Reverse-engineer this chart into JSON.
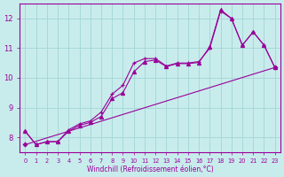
{
  "xlabel": "Windchill (Refroidissement éolien,°C)",
  "xlim": [
    -0.5,
    23.5
  ],
  "ylim": [
    7.5,
    12.5
  ],
  "xticks": [
    0,
    1,
    2,
    3,
    4,
    5,
    6,
    7,
    8,
    9,
    10,
    11,
    12,
    13,
    14,
    15,
    16,
    17,
    18,
    19,
    20,
    21,
    22,
    23
  ],
  "yticks": [
    8,
    9,
    10,
    11,
    12
  ],
  "bg_color": "#c8ecec",
  "line_color": "#990099",
  "grid_color": "#a8d8d8",
  "line1_x": [
    0,
    1,
    2,
    3,
    4,
    5,
    6,
    7,
    8,
    9,
    10,
    11,
    12,
    13,
    14,
    15,
    16,
    17,
    18,
    19,
    20,
    21,
    22,
    23
  ],
  "line1_y": [
    8.2,
    7.75,
    7.85,
    7.85,
    8.25,
    8.45,
    8.55,
    8.85,
    9.45,
    9.75,
    10.5,
    10.65,
    10.65,
    10.4,
    10.5,
    10.5,
    10.55,
    11.0,
    12.25,
    12.0,
    11.1,
    11.55,
    11.1,
    10.35
  ],
  "line1_marker": "+",
  "line2_x": [
    0,
    1,
    2,
    3,
    4,
    5,
    6,
    7,
    8,
    9,
    10,
    11,
    12,
    13,
    14,
    15,
    16,
    17,
    18,
    19,
    20,
    21,
    22,
    23
  ],
  "line2_y": [
    8.2,
    7.75,
    7.85,
    7.85,
    8.2,
    8.4,
    8.5,
    8.7,
    9.3,
    9.5,
    10.2,
    10.55,
    10.6,
    10.38,
    10.48,
    10.48,
    10.52,
    11.05,
    12.3,
    12.0,
    11.1,
    11.55,
    11.1,
    10.35
  ],
  "line2_marker": "^",
  "line3_x": [
    0,
    23
  ],
  "line3_y": [
    7.75,
    10.35
  ],
  "line3_marker": "D"
}
